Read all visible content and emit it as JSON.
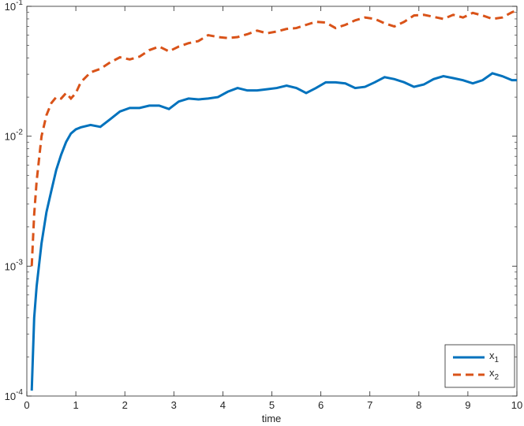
{
  "chart_data": {
    "type": "line",
    "x_label": "time",
    "x": [
      0.1,
      0.15,
      0.2,
      0.3,
      0.4,
      0.5,
      0.6,
      0.7,
      0.8,
      0.9,
      1.0,
      1.1,
      1.3,
      1.5,
      1.7,
      1.9,
      2.1,
      2.3,
      2.5,
      2.7,
      2.9,
      3.1,
      3.3,
      3.5,
      3.7,
      3.9,
      4.1,
      4.3,
      4.5,
      4.7,
      4.9,
      5.1,
      5.3,
      5.5,
      5.7,
      5.9,
      6.1,
      6.3,
      6.5,
      6.7,
      6.9,
      7.1,
      7.3,
      7.5,
      7.7,
      7.9,
      8.1,
      8.3,
      8.5,
      8.7,
      8.9,
      9.1,
      9.3,
      9.5,
      9.7,
      9.9,
      10
    ],
    "series": [
      {
        "name": "x_1",
        "color": "#0072bd",
        "dash": "solid",
        "values": [
          0.00011,
          0.0004,
          0.0007,
          0.0015,
          0.0026,
          0.0038,
          0.0055,
          0.0072,
          0.009,
          0.0105,
          0.0113,
          0.0117,
          0.0122,
          0.0118,
          0.0135,
          0.0155,
          0.0165,
          0.0165,
          0.0172,
          0.0172,
          0.0162,
          0.0185,
          0.0195,
          0.0192,
          0.0195,
          0.02,
          0.022,
          0.0235,
          0.0225,
          0.0225,
          0.023,
          0.0235,
          0.0245,
          0.0235,
          0.0215,
          0.0235,
          0.026,
          0.026,
          0.0255,
          0.0235,
          0.024,
          0.026,
          0.0285,
          0.0275,
          0.026,
          0.024,
          0.025,
          0.0275,
          0.029,
          0.028,
          0.027,
          0.0255,
          0.027,
          0.0305,
          0.029,
          0.027,
          0.027
        ]
      },
      {
        "name": "x_2",
        "color": "#d95319",
        "dash": "dashed",
        "values": [
          0.001,
          0.0025,
          0.0045,
          0.01,
          0.0145,
          0.018,
          0.02,
          0.0195,
          0.0215,
          0.0195,
          0.0215,
          0.026,
          0.031,
          0.033,
          0.037,
          0.0405,
          0.039,
          0.041,
          0.046,
          0.049,
          0.045,
          0.049,
          0.052,
          0.054,
          0.06,
          0.058,
          0.057,
          0.058,
          0.061,
          0.065,
          0.062,
          0.064,
          0.067,
          0.068,
          0.072,
          0.076,
          0.075,
          0.068,
          0.072,
          0.078,
          0.082,
          0.08,
          0.074,
          0.07,
          0.076,
          0.085,
          0.086,
          0.083,
          0.08,
          0.086,
          0.082,
          0.089,
          0.085,
          0.08,
          0.082,
          0.09,
          0.093
        ]
      }
    ],
    "xlim": [
      0,
      10
    ],
    "xticks": [
      0,
      1,
      2,
      3,
      4,
      5,
      6,
      7,
      8,
      9,
      10
    ],
    "ylim": [
      0.0001,
      0.1
    ],
    "yscale": "log",
    "yticks": [
      {
        "value": 0.0001,
        "label": "10^-4"
      },
      {
        "value": 0.001,
        "label": "10^-3"
      },
      {
        "value": 0.01,
        "label": "10^-2"
      },
      {
        "value": 0.1,
        "label": "10^-1"
      }
    ],
    "grid": false,
    "legend": "southeast"
  }
}
